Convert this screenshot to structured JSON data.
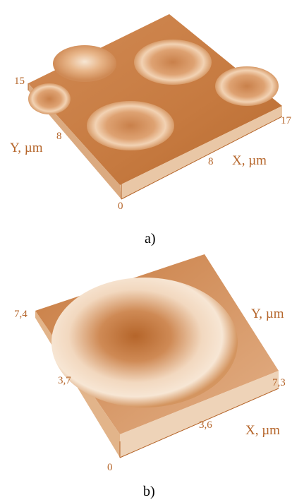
{
  "panel_a": {
    "caption": "a)",
    "y_axis_label": "Y, µm",
    "x_axis_label": "X, µm",
    "y_ticks": [
      "15",
      "8"
    ],
    "x_ticks": [
      "8",
      "17"
    ],
    "origin": "0"
  },
  "panel_b": {
    "caption": "b)",
    "y_axis_label": "Y, µm",
    "x_axis_label": "X, µm",
    "y_ticks": [
      "7,4",
      "3,7"
    ],
    "x_ticks": [
      "3,6",
      "7,3"
    ],
    "origin": "0"
  },
  "colors": {
    "surface_dark": "#b5652a",
    "surface_mid": "#d8935a",
    "surface_light": "#f6e2cc",
    "label": "#b5652a"
  }
}
